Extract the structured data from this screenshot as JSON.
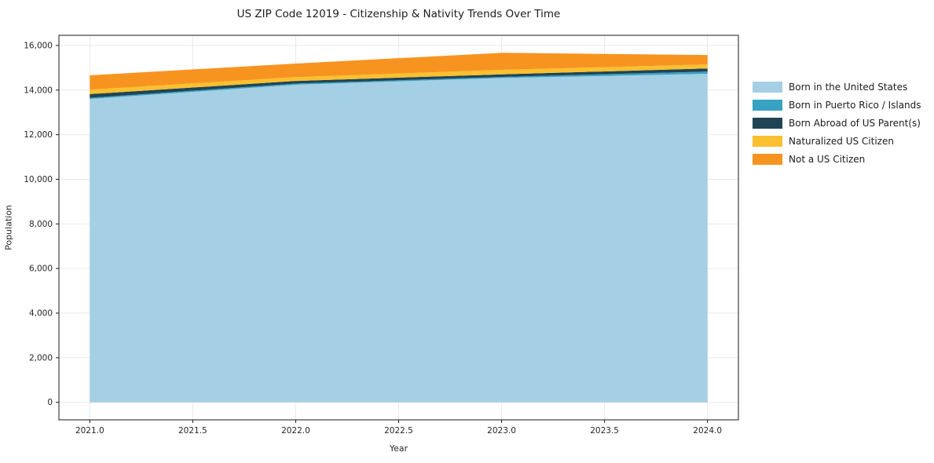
{
  "page": {
    "background": "#ffffff"
  },
  "chart_data": {
    "type": "area",
    "stacked": true,
    "title": "US ZIP Code 12019 - Citizenship & Nativity Trends Over Time",
    "xlabel": "Year",
    "ylabel": "Population",
    "x": [
      2021,
      2022,
      2023,
      2024
    ],
    "series": [
      {
        "name": "Born in the United States",
        "color": "#a5cfe4",
        "values": [
          13600,
          14240,
          14540,
          14730
        ]
      },
      {
        "name": "Born in Puerto Rico / Islands",
        "color": "#38a2c2",
        "values": [
          55,
          50,
          50,
          100
        ]
      },
      {
        "name": "Born Abroad of US Parent(s)",
        "color": "#204456",
        "values": [
          165,
          120,
          115,
          140
        ]
      },
      {
        "name": "Naturalized US Citizen",
        "color": "#fbc02f",
        "values": [
          200,
          170,
          200,
          180
        ]
      },
      {
        "name": "Not a US Citizen",
        "color": "#f79420",
        "values": [
          640,
          610,
          765,
          420
        ]
      }
    ],
    "totals": [
      14660,
      15190,
      15670,
      15570
    ],
    "xticks": [
      2021.0,
      2021.5,
      2022.0,
      2022.5,
      2023.0,
      2023.5,
      2024.0
    ],
    "xtick_labels": [
      "2021.0",
      "2021.5",
      "2022.0",
      "2022.5",
      "2023.0",
      "2023.5",
      "2024.0"
    ],
    "yticks": [
      0,
      2000,
      4000,
      6000,
      8000,
      10000,
      12000,
      14000,
      16000
    ],
    "ytick_labels": [
      "0",
      "2,000",
      "4,000",
      "6,000",
      "8,000",
      "10,000",
      "12,000",
      "14,000",
      "16,000"
    ],
    "xlim": [
      2020.85,
      2024.15
    ],
    "ylim": [
      -785,
      16455
    ],
    "grid": true,
    "grid_color": "#e7e7e7",
    "spine_color": "#1a1a1a",
    "tick_label_color": "#262626",
    "legend_position": "right"
  }
}
